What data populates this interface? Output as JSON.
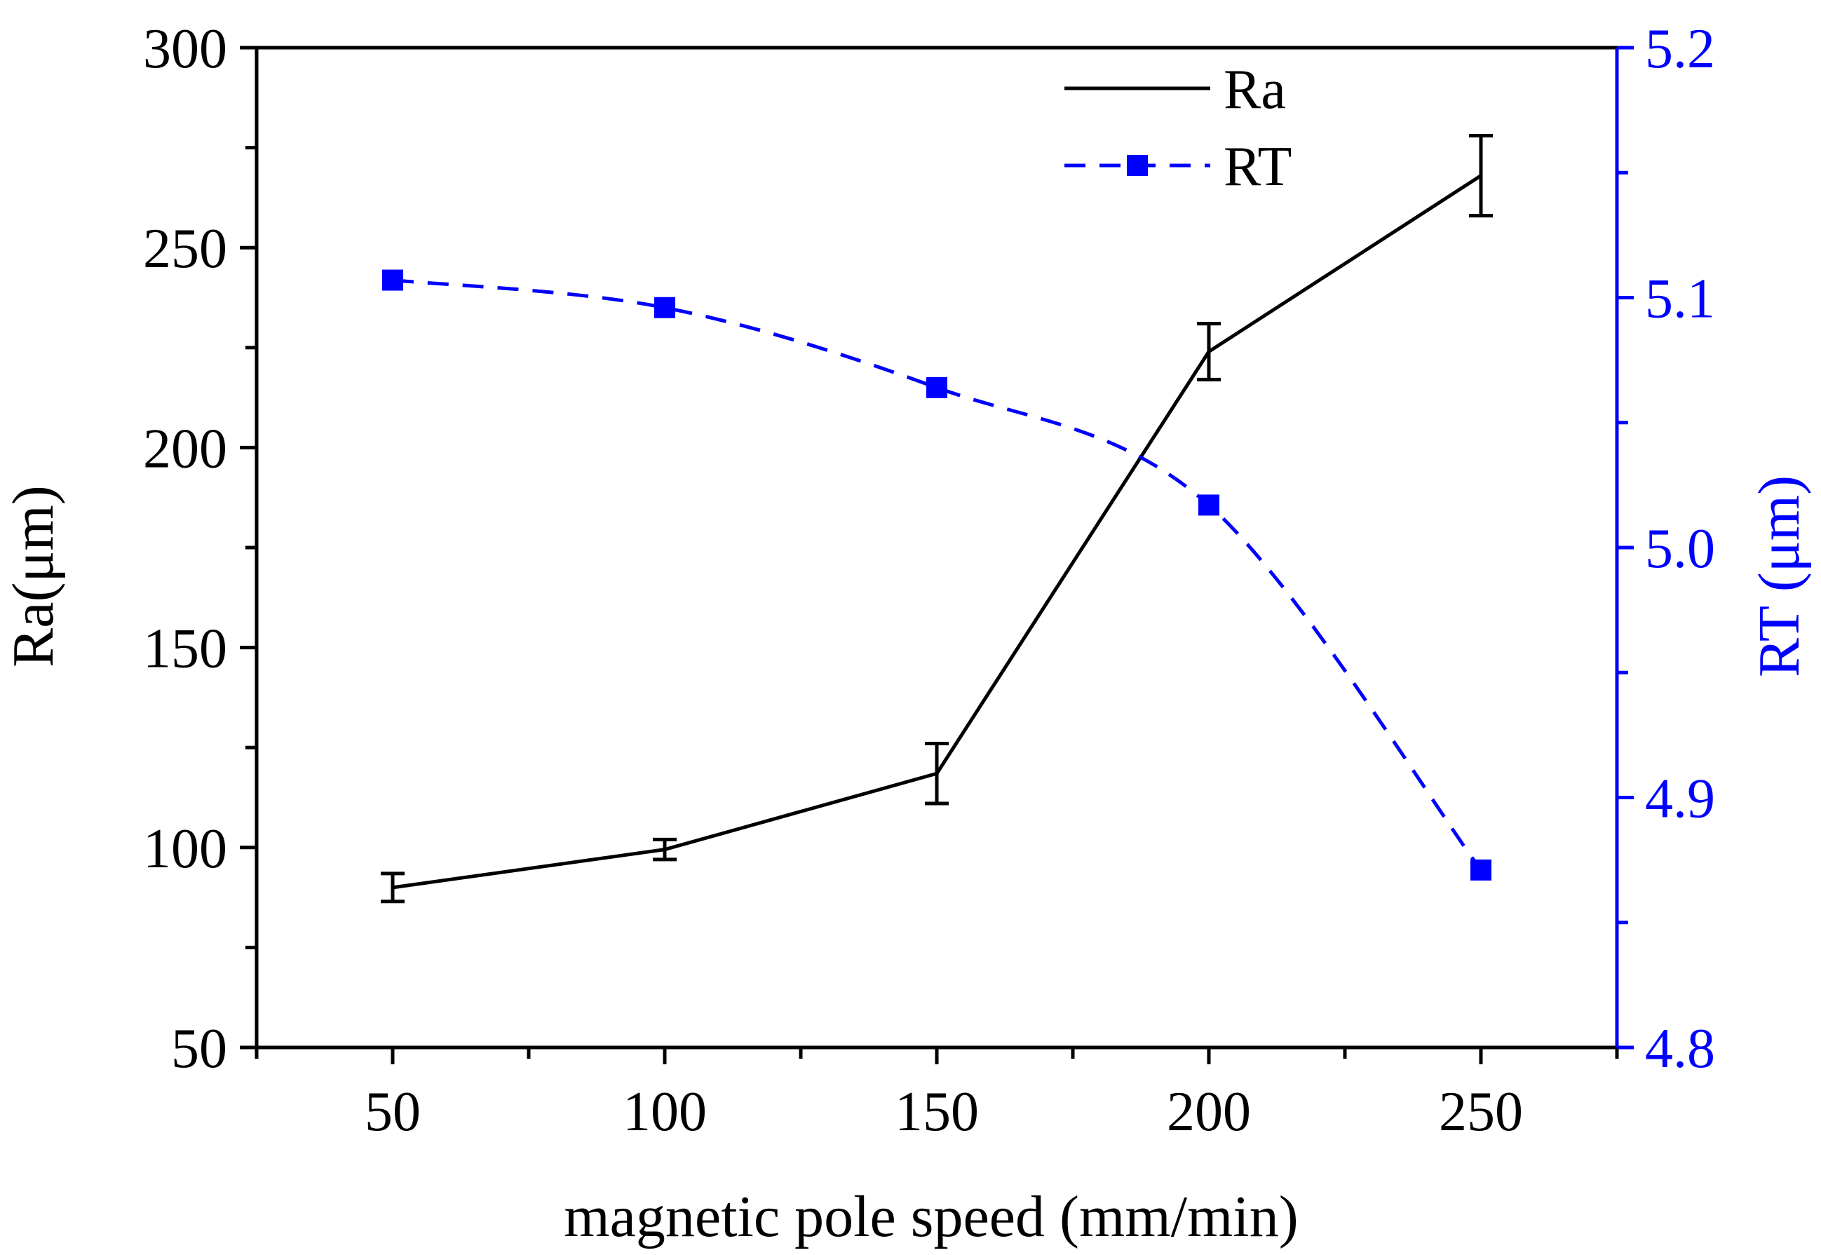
{
  "chart_data": {
    "type": "line",
    "x": [
      50,
      100,
      150,
      200,
      250
    ],
    "xlabel": "magnetic pole speed (mm/min)",
    "xlim": [
      25,
      275
    ],
    "xticks": [
      50,
      100,
      150,
      200,
      250
    ],
    "ylabel": "Ra(μm)",
    "ylim": [
      50,
      300
    ],
    "yticks": [
      50,
      100,
      150,
      200,
      250,
      300
    ],
    "y2label": "RT (μm)",
    "y2lim": [
      4.8,
      5.2
    ],
    "y2ticks": [
      "4.8",
      "4.9",
      "5.0",
      "5.1",
      "5.2"
    ],
    "legend_position": "top-right",
    "grid": false,
    "series": [
      {
        "name": "Ra",
        "axis": "left",
        "style": "solid",
        "color": "#000000",
        "values": [
          90,
          99.5,
          118.5,
          224,
          268
        ],
        "error": [
          3.5,
          2.5,
          7.5,
          7,
          10
        ]
      },
      {
        "name": "RT",
        "axis": "right",
        "style": "dashed",
        "marker": "square",
        "color": "#0000ff",
        "values": [
          5.107,
          5.096,
          5.064,
          5.017,
          4.871
        ]
      }
    ]
  }
}
